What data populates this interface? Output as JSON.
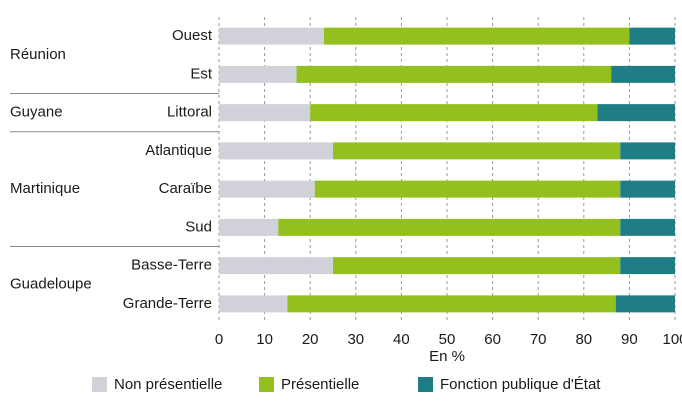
{
  "chart_data": {
    "type": "stacked-bar-horizontal",
    "groups": [
      {
        "name": "Réunion",
        "categories": [
          "Ouest",
          "Est"
        ]
      },
      {
        "name": "Guyane",
        "categories": [
          "Littoral"
        ]
      },
      {
        "name": "Martinique",
        "categories": [
          "Atlantique",
          "Caraïbe",
          "Sud"
        ]
      },
      {
        "name": "Guadeloupe",
        "categories": [
          "Basse-Terre",
          "Grande-Terre"
        ]
      }
    ],
    "series": [
      {
        "name": "Non présentielle",
        "color": "#d1d1d9",
        "values": [
          23,
          17,
          20,
          25,
          21,
          13,
          25,
          15
        ]
      },
      {
        "name": "Présentielle",
        "color": "#93c01f",
        "values": [
          67,
          69,
          63,
          63,
          67,
          75,
          63,
          72
        ]
      },
      {
        "name": "Fonction publique d'État",
        "color": "#1f7d86",
        "values": [
          10,
          14,
          17,
          12,
          12,
          12,
          12,
          13
        ]
      }
    ],
    "xlabel": "En %",
    "xlim": [
      0,
      100
    ],
    "xticks": [
      0,
      10,
      20,
      30,
      40,
      50,
      60,
      70,
      80,
      90,
      100
    ],
    "grid": true
  }
}
